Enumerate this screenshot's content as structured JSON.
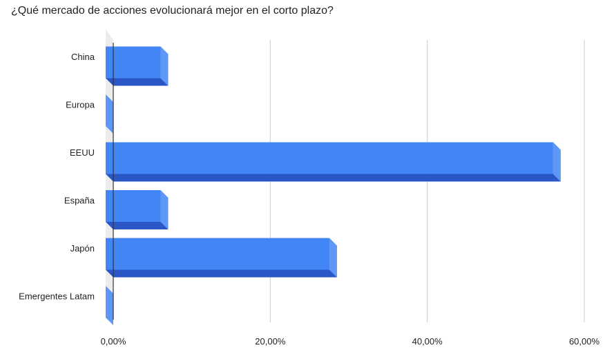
{
  "chart_data": {
    "type": "bar",
    "orientation": "horizontal",
    "style": "3d",
    "title": "¿Qué mercado de acciones evolucionará mejor en el corto plazo?",
    "xlabel": "",
    "ylabel": "",
    "categories": [
      "China",
      "Europa",
      "EEUU",
      "España",
      "Japón",
      "Emergentes Latam"
    ],
    "values": [
      7.0,
      0.0,
      57.0,
      7.0,
      28.5,
      0.0
    ],
    "value_unit": "%",
    "xlim": [
      0,
      60
    ],
    "x_ticks": [
      "0,00%",
      "20,00%",
      "40,00%",
      "60,00%"
    ],
    "grid": true,
    "legend": "none",
    "colors": {
      "bar_front": "#4285f4",
      "bar_right_side": "#5e97f6",
      "bar_bottom_side": "#2a56c6",
      "gridline": "#cccccc",
      "axis": "#333333",
      "label_text": "#222222"
    }
  }
}
